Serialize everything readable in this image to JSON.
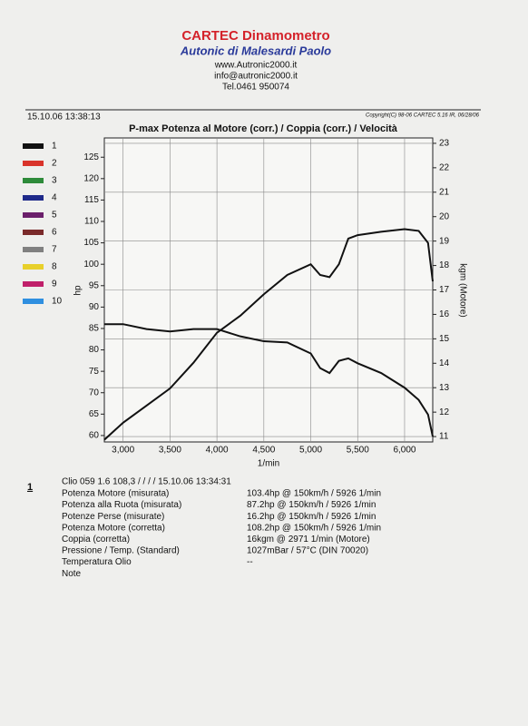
{
  "header": {
    "title": "CARTEC Dinamometro",
    "subtitle": "Autonic di Malesardi Paolo",
    "lines": [
      "www.Autronic2000.it",
      "info@autronic2000.it",
      "Tel.0461 950074"
    ],
    "timestamp": "15.10.06 13:38:13",
    "copyright": "Copyright(C) 98-06 CARTEC 5.16 IR, 06/28/06"
  },
  "chart_data": {
    "type": "line",
    "title": "P-max Potenza al Motore (corr.) / Coppia (corr.) / Velocità",
    "x_label": "1/min",
    "y_label": "hp",
    "y2_label": "kgm (Motore)",
    "x": [
      2800,
      3000,
      3250,
      3500,
      3750,
      4000,
      4250,
      4500,
      4750,
      5000,
      5100,
      5200,
      5300,
      5400,
      5500,
      5750,
      6000,
      6150,
      6250,
      6300
    ],
    "series": [
      {
        "color": "#111111",
        "values": [
          59,
          63,
          67,
          71,
          77,
          84,
          88,
          93,
          97.5,
          100,
          97.5,
          97,
          100,
          106,
          106.8,
          107.6,
          108.2,
          107.8,
          105,
          96
        ]
      },
      {
        "color": "#111111",
        "axis": "y2",
        "values": [
          15.6,
          15.6,
          15.4,
          15.3,
          15.4,
          15.4,
          15.1,
          14.9,
          14.85,
          14.4,
          13.8,
          13.6,
          14.1,
          14.2,
          14.0,
          13.6,
          13.0,
          12.5,
          11.9,
          11.0
        ]
      }
    ],
    "xlim": [
      2800,
      6300
    ],
    "xticks": [
      {
        "value": 3000,
        "label": "3,000"
      },
      {
        "value": 3500,
        "label": "3,500"
      },
      {
        "value": 4000,
        "label": "4,000"
      },
      {
        "value": 4500,
        "label": "4,500"
      },
      {
        "value": 5000,
        "label": "5,000"
      },
      {
        "value": 5500,
        "label": "5,500"
      },
      {
        "value": 6000,
        "label": "6,000"
      }
    ],
    "ylim": [
      58.5,
      129.5
    ],
    "yticks": [
      60,
      65,
      70,
      75,
      80,
      85,
      90,
      95,
      100,
      105,
      110,
      115,
      120,
      125
    ],
    "y2lim": [
      10.78,
      23.22
    ],
    "y2ticks": [
      11,
      12,
      13,
      14,
      15,
      16,
      17,
      18,
      19,
      20,
      21,
      22,
      23
    ],
    "grid": true,
    "legend_items": [
      {
        "label": "1",
        "color": "#111111"
      },
      {
        "label": "2",
        "color": "#d9342b"
      },
      {
        "label": "3",
        "color": "#2e8b3a"
      },
      {
        "label": "4",
        "color": "#1f2a8a"
      },
      {
        "label": "5",
        "color": "#6b1f6b"
      },
      {
        "label": "6",
        "color": "#7a2a2a"
      },
      {
        "label": "7",
        "color": "#808080"
      },
      {
        "label": "8",
        "color": "#e8d02a"
      },
      {
        "label": "9",
        "color": "#c0206a"
      },
      {
        "label": "10",
        "color": "#2f8fe0"
      }
    ]
  },
  "results": {
    "index": "1",
    "vehicle": "Clio 059 1.6 108,3 / / / / 15.10.06 13:34:31",
    "rows": [
      [
        "Potenza Motore (misurata)",
        "103.4hp @ 150km/h / 5926 1/min"
      ],
      [
        "Potenza alla Ruota (misurata)",
        "87.2hp @ 150km/h / 5926 1/min"
      ],
      [
        "Potenze Perse (misurate)",
        "16.2hp @ 150km/h / 5926 1/min"
      ],
      [
        "Potenza Motore (corretta)",
        "108.2hp @ 150km/h / 5926 1/min"
      ],
      [
        "Coppia (corretta)",
        "16kgm @ 2971 1/min (Motore)"
      ],
      [
        "Pressione / Temp. (Standard)",
        "1027mBar / 57°C   (DIN 70020)"
      ],
      [
        "Temperatura Olio",
        "--"
      ],
      [
        "Note",
        ""
      ]
    ]
  }
}
